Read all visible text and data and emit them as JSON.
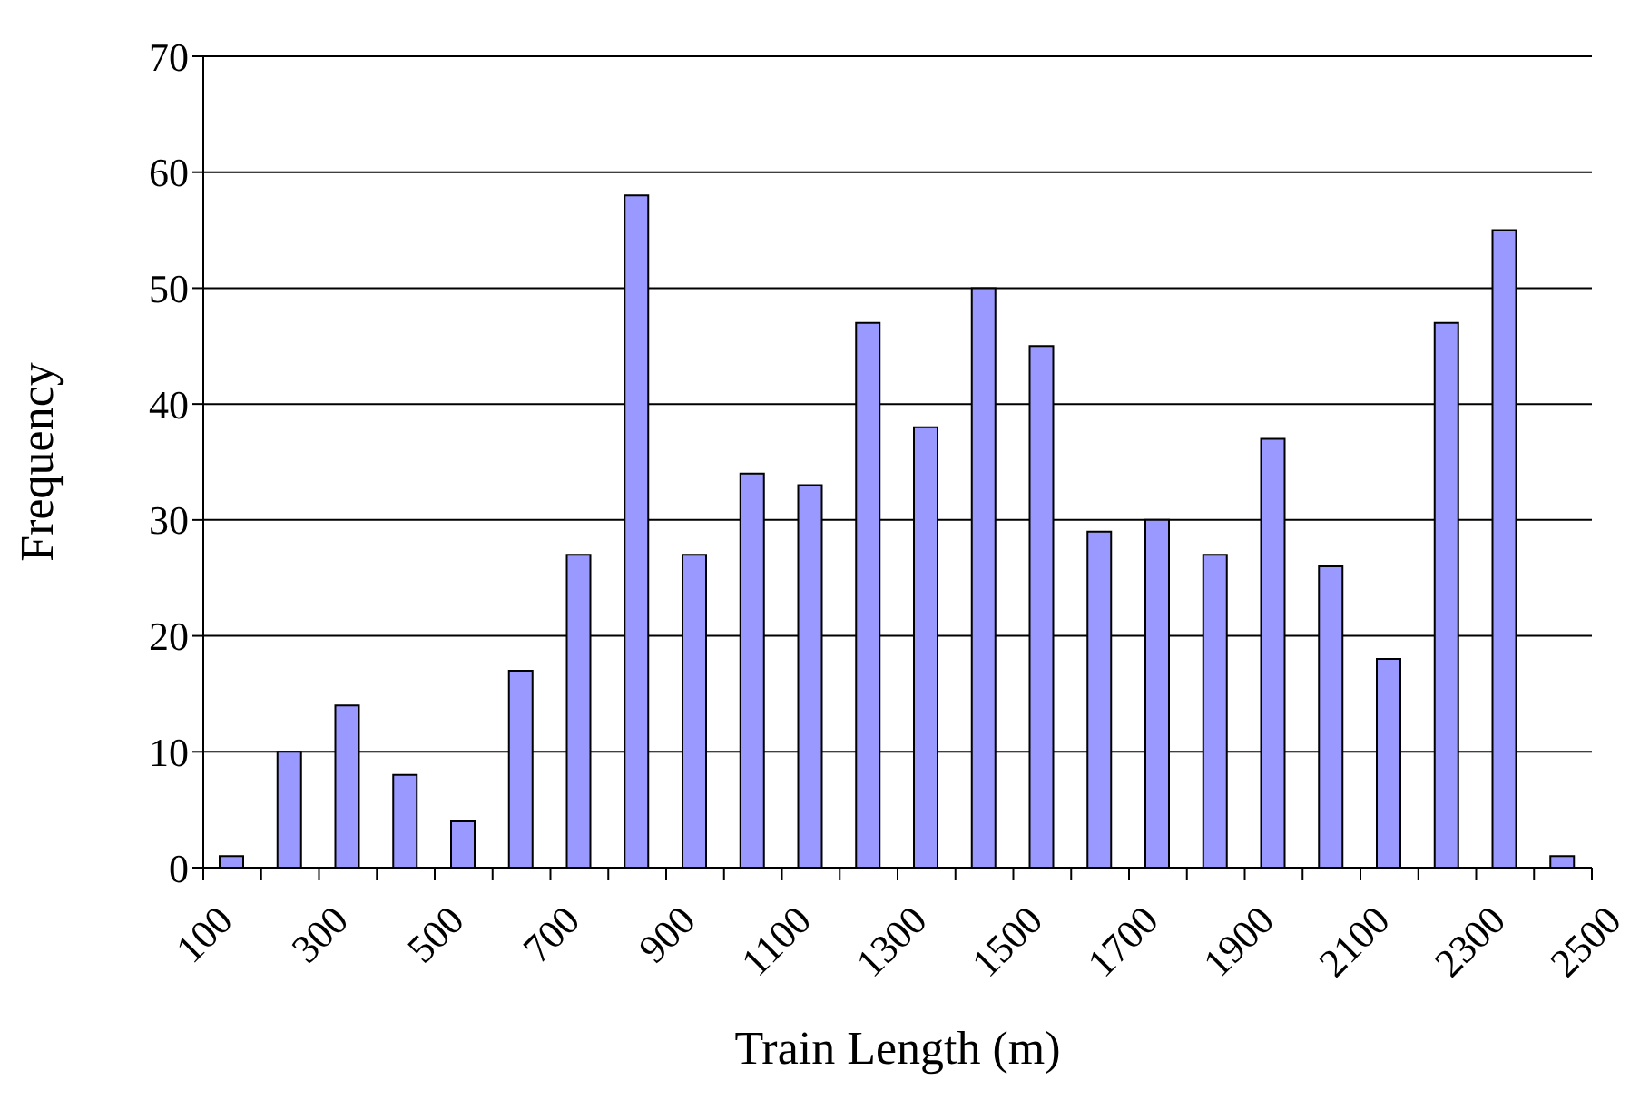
{
  "chart_data": {
    "type": "histogram",
    "xlabel": "Train Length (m)",
    "ylabel": "Frequency",
    "bins": [
      100,
      200,
      300,
      400,
      500,
      600,
      700,
      800,
      900,
      1000,
      1100,
      1200,
      1300,
      1400,
      1500,
      1600,
      1700,
      1800,
      1900,
      2000,
      2100,
      2200,
      2300,
      2400,
      2500
    ],
    "values": [
      1,
      10,
      14,
      8,
      4,
      17,
      27,
      58,
      27,
      34,
      33,
      47,
      38,
      50,
      45,
      29,
      30,
      27,
      37,
      26,
      18,
      47,
      55,
      1
    ],
    "color": "#9999ff",
    "xlim": [
      100,
      2500
    ],
    "xticks": [
      100,
      {
        "value": 200,
        "label": null
      },
      300,
      {
        "value": 400,
        "label": null
      },
      500,
      {
        "value": 600,
        "label": null
      },
      700,
      {
        "value": 800,
        "label": null
      },
      900,
      {
        "value": 1000,
        "label": null
      },
      1100,
      {
        "value": 1200,
        "label": null
      },
      1300,
      {
        "value": 1400,
        "label": null
      },
      1500,
      {
        "value": 1600,
        "label": null
      },
      1700,
      {
        "value": 1800,
        "label": null
      },
      1900,
      {
        "value": 2000,
        "label": null
      },
      2100,
      {
        "value": 2200,
        "label": null
      },
      2300,
      {
        "value": 2400,
        "label": null
      },
      2500
    ],
    "ylim": [
      0,
      70
    ],
    "yticks": [
      0,
      10,
      20,
      30,
      40,
      50,
      60,
      70
    ],
    "grid": "y"
  }
}
